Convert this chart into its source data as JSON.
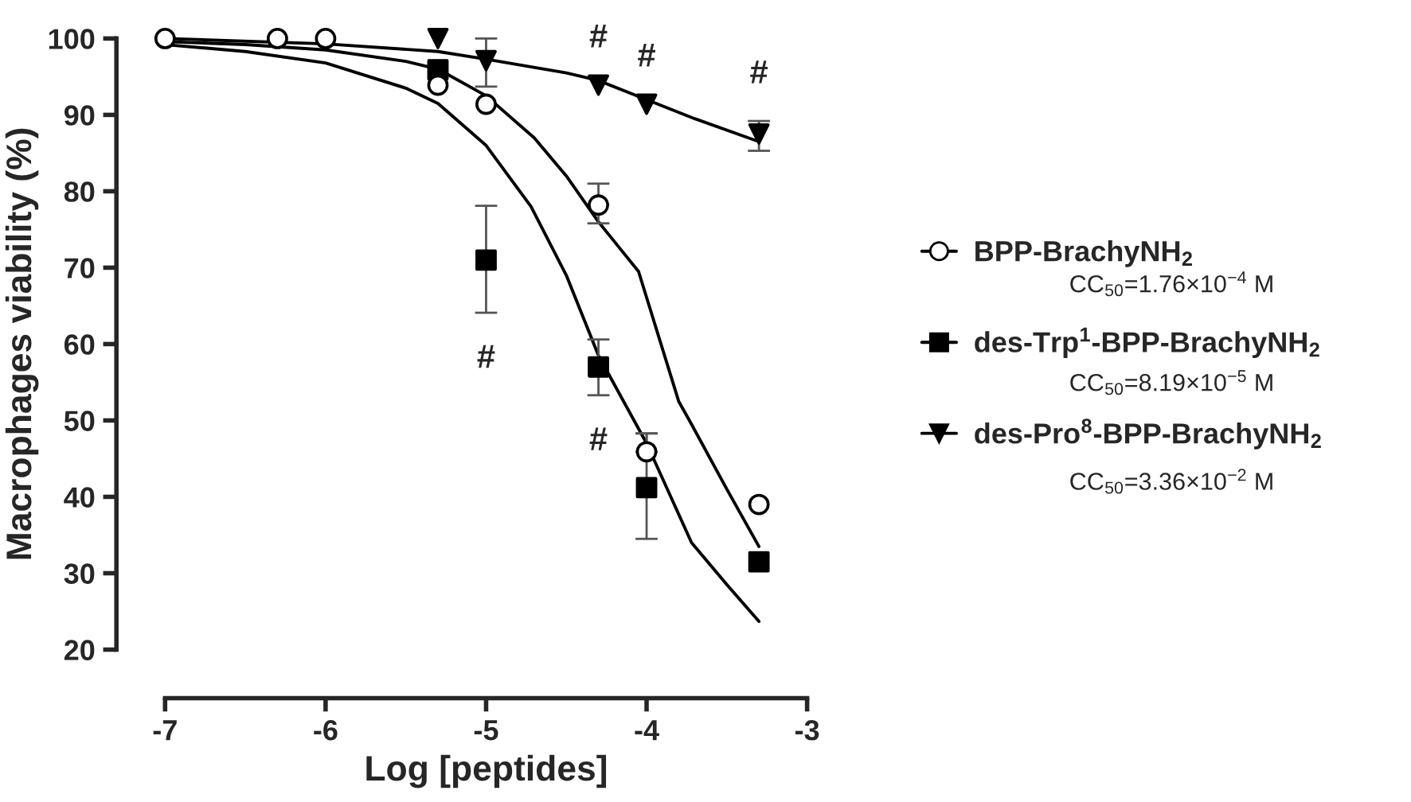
{
  "chart_data": {
    "type": "scatter",
    "xlabel": "Log [peptides]",
    "ylabel": "Macrophages viability (%)",
    "xlim": [
      -7,
      -3
    ],
    "xticks": [
      -7,
      -6,
      -5,
      -4,
      -3
    ],
    "ylim": [
      20,
      100
    ],
    "yticks": [
      20,
      30,
      40,
      50,
      60,
      70,
      80,
      90,
      100
    ],
    "grid": false,
    "legend": "right",
    "series": [
      {
        "name": "BPP-BrachyNH$_{2}$",
        "marker": "circle",
        "color": "#000000",
        "x": [
          -7,
          -6.3,
          -6,
          -5.3,
          -5,
          -4.3,
          -4,
          -3.3
        ],
        "values": [
          100,
          100,
          100,
          93.9,
          91.4,
          78.2,
          45.9,
          39.0
        ],
        "errors": [
          null,
          null,
          null,
          null,
          null,
          [
            75.8,
            81.0
          ],
          [
            45.9,
            48.3
          ],
          null
        ]
      },
      {
        "name": "des-Trp$^{1}$-BPP-BrachyNH$_{2}$",
        "marker": "square",
        "color": "#000000",
        "x": [
          -5.3,
          -5,
          -4.3,
          -4,
          -3.3
        ],
        "values": [
          95.9,
          71.0,
          57.0,
          41.2,
          31.5
        ],
        "errors": [
          null,
          [
            64.1,
            78.1
          ],
          [
            53.3,
            60.6
          ],
          [
            34.5,
            48.3
          ],
          null
        ]
      },
      {
        "name": "des-Pro$^{8}$-BPP-BrachyNH$_{2}$",
        "marker": "triangle",
        "color": "#000000",
        "x": [
          -5.3,
          -5,
          -4.3,
          -4,
          -3.3
        ],
        "values": [
          100,
          97.1,
          93.9,
          91.4,
          87.5
        ],
        "errors": [
          null,
          [
            93.7,
            100
          ],
          null,
          null,
          [
            85.3,
            89.2
          ]
        ]
      },
      {
        "type": "line",
        "color": "#000000",
        "x": [
          -7,
          -6.5,
          -6,
          -5.5,
          -5.3,
          -5,
          -4.7,
          -4.5,
          -4.3,
          -4.05,
          -3.8,
          -3.72,
          -3.5,
          -3.3
        ],
        "values": [
          99.6,
          99.2,
          98.5,
          97,
          96,
          92.5,
          87,
          82,
          76,
          69.5,
          52.5,
          49.5,
          41,
          33.5
        ]
      },
      {
        "type": "line",
        "color": "#000000",
        "x": [
          -7,
          -6.5,
          -6,
          -5.5,
          -5.3,
          -5,
          -4.72,
          -4.5,
          -4.3,
          -4,
          -3.72,
          -3.5,
          -3.3
        ],
        "values": [
          99.2,
          98.3,
          96.8,
          93.5,
          91.5,
          86,
          78,
          69,
          58.5,
          47,
          34,
          28.5,
          23.7
        ]
      },
      {
        "type": "line",
        "color": "#000000",
        "x": [
          -7,
          -6,
          -5.3,
          -5,
          -4.5,
          -4.3,
          -4,
          -3.7,
          -3.3
        ],
        "values": [
          100,
          99.3,
          98.3,
          97.3,
          95.5,
          94.5,
          92,
          89.5,
          86.5
        ]
      }
    ],
    "annotations": [
      "CC$_{50}$=1.76×10$^{−4}$ M",
      "CC$_{50}$=8.19×10$^{−5}$ M",
      "CC$_{50}$=3.36×10$^{−2}$ M",
      {
        "text": "#",
        "x": -5,
        "y": 71.0
      },
      {
        "text": "#",
        "x": -4.3,
        "y": 57.0
      },
      {
        "text": "#",
        "x": -4.3,
        "y": 93.9
      },
      {
        "text": "#",
        "x": -4,
        "y": 91.4
      },
      {
        "text": "#",
        "x": -3.3,
        "y": 87.5
      }
    ]
  }
}
